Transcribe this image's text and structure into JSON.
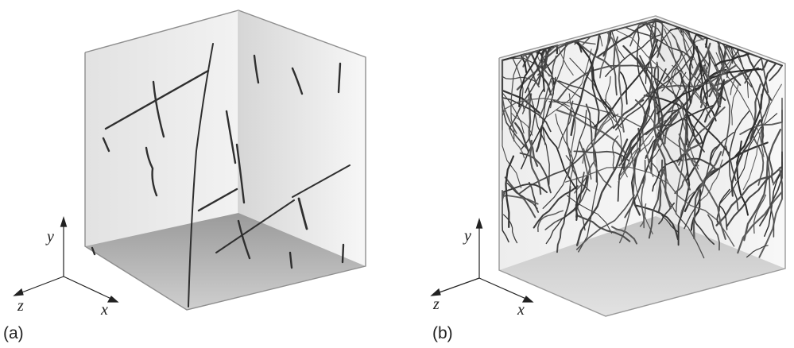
{
  "panels": [
    {
      "id": "a",
      "label": "(a)",
      "axes": {
        "x": "x",
        "y": "y",
        "z": "z"
      },
      "density": "sparse"
    },
    {
      "id": "b",
      "label": "(b)",
      "axes": {
        "x": "x",
        "y": "y",
        "z": "z"
      },
      "density": "dense"
    }
  ],
  "colors": {
    "background": "#ffffff",
    "fiber": "#333333",
    "face_left": "#e6e6e6",
    "face_right": "#eeeeee",
    "floor": "#b5b5b5",
    "edge": "#9a9a9a"
  }
}
